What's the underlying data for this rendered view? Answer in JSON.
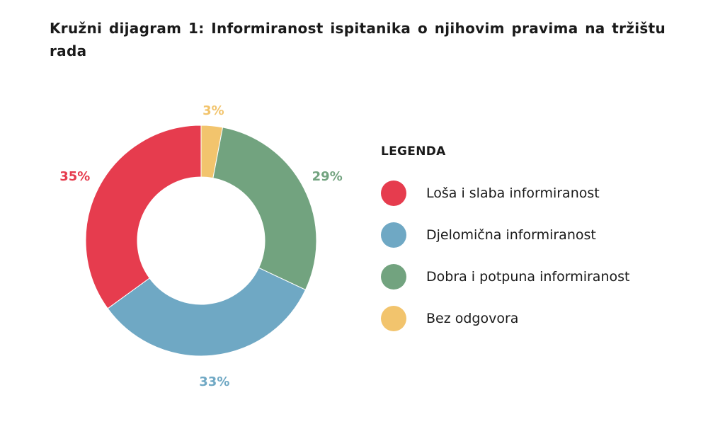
{
  "chart_data": {
    "type": "pie",
    "title": "Kružni dijagram 1: Informiranost ispitanika o njihovim pravima na tržištu rada",
    "legend_title": "LEGENDA",
    "legend_position": "right",
    "slices": [
      {
        "label": "Loša i slaba informiranost",
        "value": 35,
        "display": "35%",
        "color": "#e63c4e"
      },
      {
        "label": "Djelomična informiranost",
        "value": 33,
        "display": "33%",
        "color": "#6fa8c4"
      },
      {
        "label": "Dobra i potpuna informiranost",
        "value": 29,
        "display": "29%",
        "color": "#72a37f"
      },
      {
        "label": "Bez odgovora",
        "value": 3,
        "display": "3%",
        "color": "#f2c46d"
      }
    ]
  }
}
